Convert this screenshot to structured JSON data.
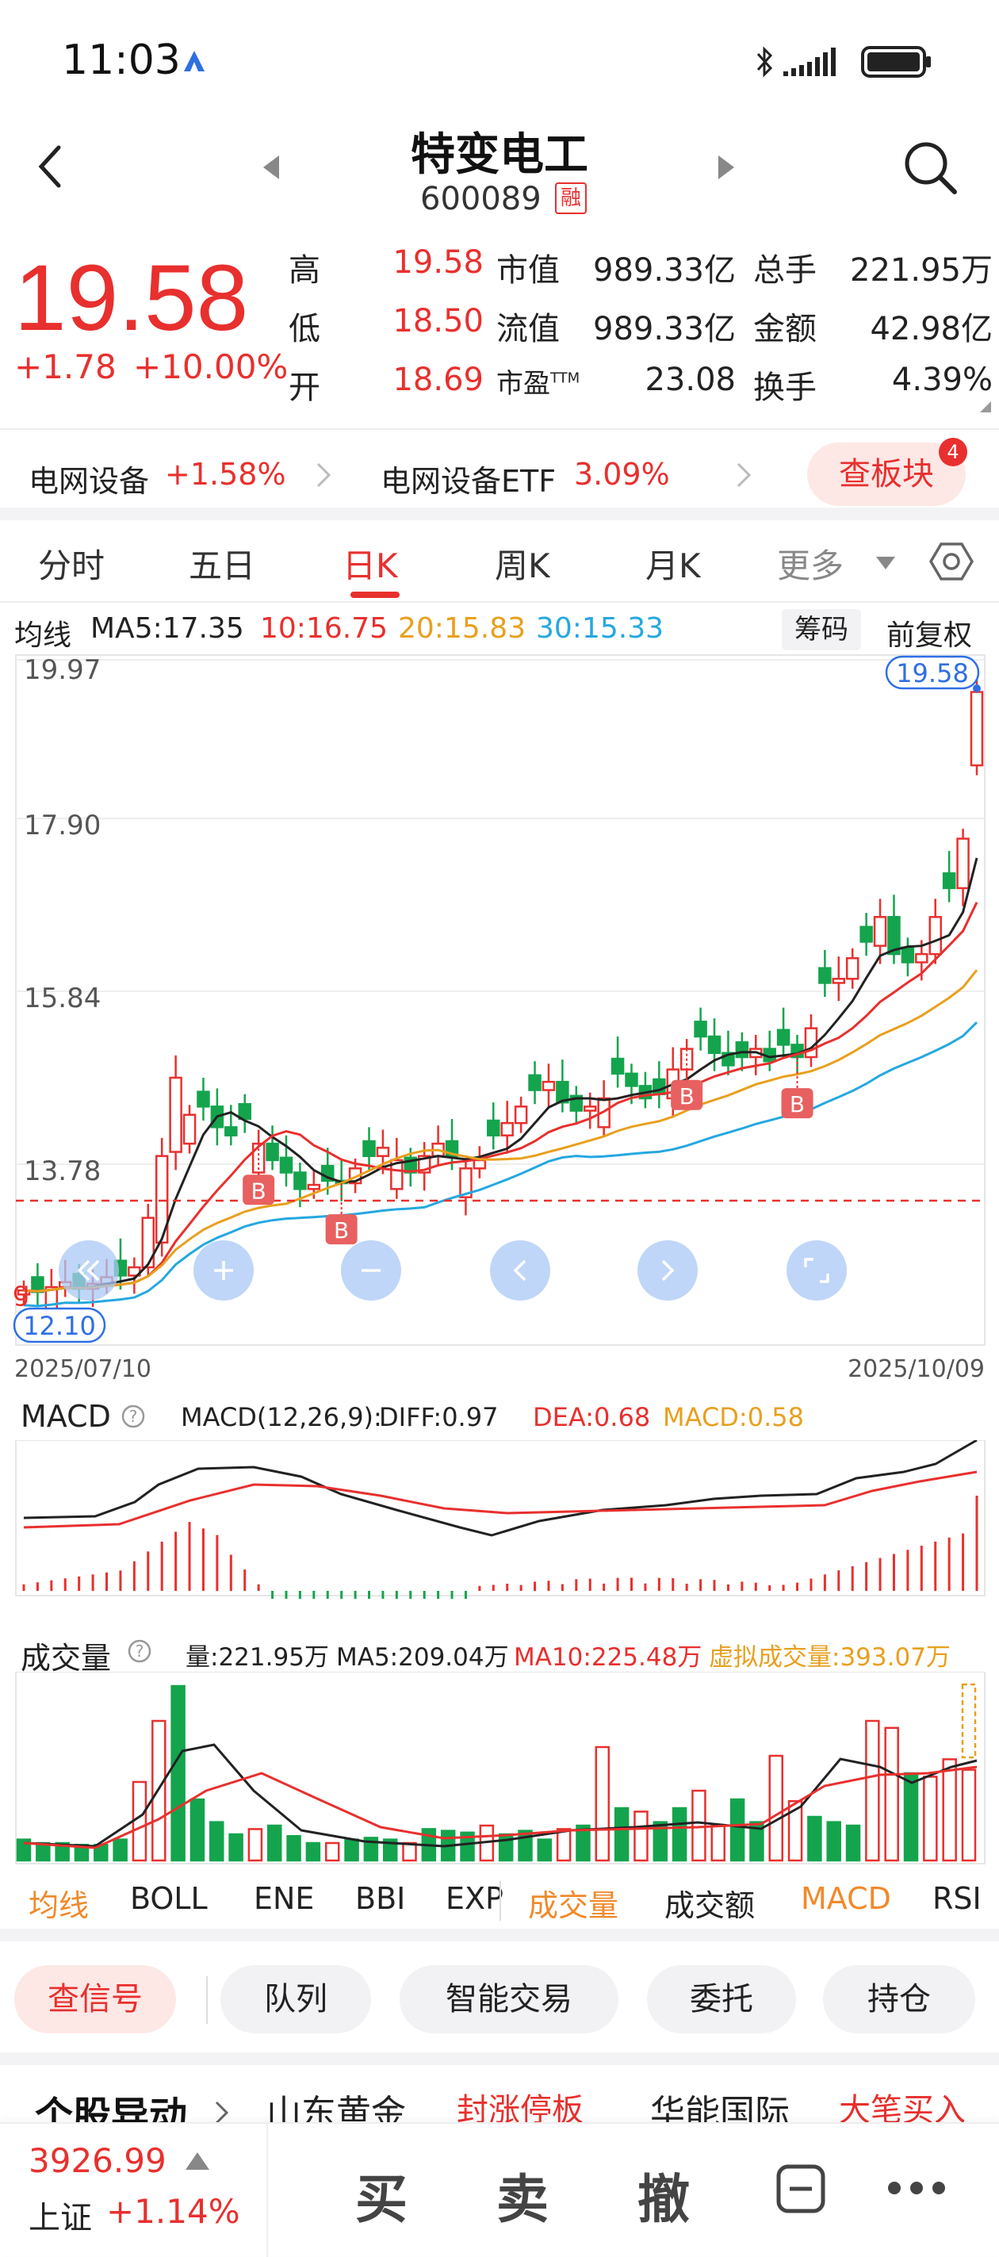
{
  "status_bar": {
    "time": "11:03"
  },
  "header": {
    "name": "特变电工",
    "code": "600089",
    "margin_tag": "融"
  },
  "quote": {
    "price": "19.58",
    "change": "+1.78",
    "change_pct": "+10.00%",
    "rows": [
      [
        {
          "label": "高",
          "value": "19.58",
          "color": "red"
        },
        {
          "label": "市值",
          "value": "989.33亿"
        },
        {
          "label": "总手",
          "value": "221.95万"
        }
      ],
      [
        {
          "label": "低",
          "value": "18.50",
          "color": "red"
        },
        {
          "label": "流值",
          "value": "989.33亿"
        },
        {
          "label": "金额",
          "value": "42.98亿"
        }
      ],
      [
        {
          "label": "开",
          "value": "18.69",
          "color": "red"
        },
        {
          "label": "市盈TTM",
          "value": "23.08"
        },
        {
          "label": "换手",
          "value": "4.39%"
        }
      ]
    ]
  },
  "sector": {
    "name1": "电网设备",
    "pct1": "+1.58%",
    "name2": "电网设备ETF",
    "pct2": "3.09%",
    "button": "查板块",
    "badge": "4"
  },
  "tabs": [
    "分时",
    "五日",
    "日K",
    "周K",
    "月K",
    "更多"
  ],
  "active_tab": "日K",
  "ma_legend": {
    "label": "均线",
    "ma5": "MA5:17.35",
    "ma10": "10:16.75",
    "ma20": "20:15.83",
    "ma30": "30:15.33",
    "chip_button": "筹码",
    "adjust_button": "前复权"
  },
  "kline": {
    "y_ticks": [
      "19.97",
      "17.90",
      "15.84",
      "13.78"
    ],
    "last_price_tag": "19.58",
    "low_price_tag": "12.10",
    "date_start": "2025/07/10",
    "date_end": "2025/10/09",
    "buy_marker": "B",
    "stray_mark": "g",
    "colors": {
      "up": "#e8302e",
      "down": "#14a44d",
      "ma5": "#222222",
      "ma10": "#e8302e",
      "ma20": "#e8a01e",
      "ma30": "#25a8e0"
    }
  },
  "macd": {
    "label": "MACD",
    "params": "MACD(12,26,9):",
    "diff": "DIFF:0.97",
    "dea": "DEA:0.68",
    "macd": "MACD:0.58"
  },
  "volume": {
    "label": "成交量",
    "vol": "量:221.95万",
    "ma5": "MA5:209.04万",
    "ma10": "MA10:225.48万",
    "virtual": "虚拟成交量:393.07万"
  },
  "indicator_tabs": [
    "均线",
    "BOLL",
    "ENE",
    "BBI",
    "EXP",
    "成交量",
    "成交额",
    "MACD",
    "RSI"
  ],
  "actions": [
    "查信号",
    "队列",
    "智能交易",
    "委托",
    "持仓"
  ],
  "news": {
    "title": "个股异动",
    "item1": "山东黄金",
    "tag1": "封涨停板",
    "item2": "华能国际",
    "tag2": "大笔买入"
  },
  "bottom": {
    "index_value": "3926.99",
    "index_name": "上证",
    "index_pct": "+1.14%",
    "buy": "买",
    "sell": "卖",
    "cancel": "撤"
  }
}
